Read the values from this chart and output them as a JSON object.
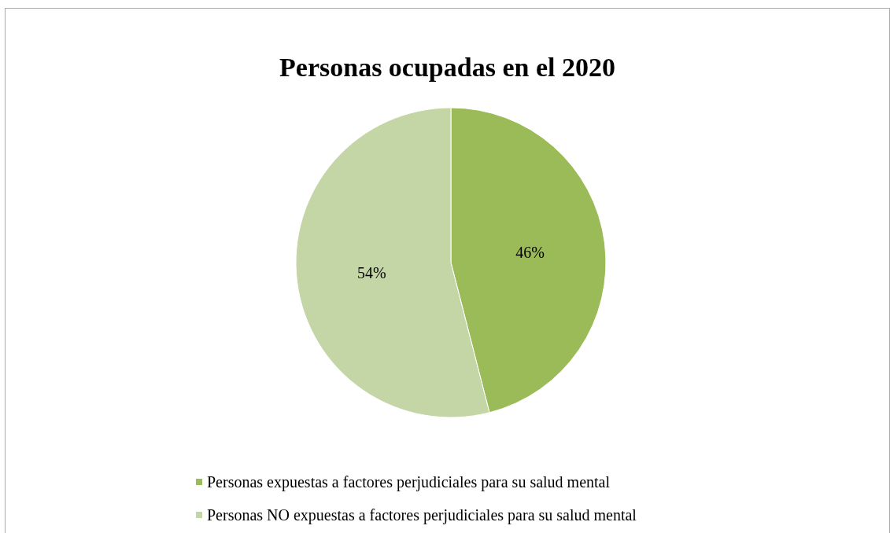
{
  "chart_data": {
    "type": "pie",
    "title": "Personas ocupadas en el 2020",
    "categories": [
      "Personas expuestas a factores perjudiciales para su salud mental",
      "Personas NO expuestas a factores perjudiciales para su salud mental"
    ],
    "values": [
      46,
      54
    ],
    "colors": [
      "#9bbb59",
      "#c4d6a6"
    ],
    "value_labels": [
      "46%",
      "54%"
    ],
    "legend": "bottom"
  }
}
